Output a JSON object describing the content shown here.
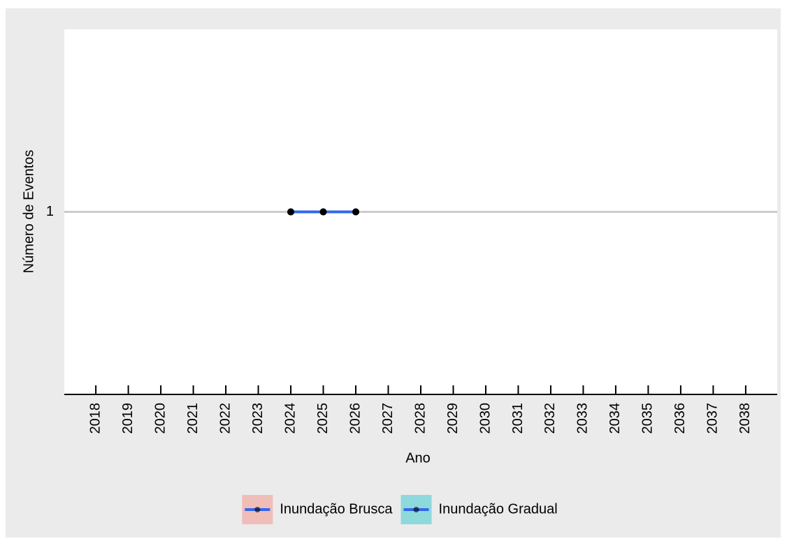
{
  "chart_data": {
    "type": "line",
    "x_label": "Ano",
    "y_label": "Número de Eventos",
    "x": [
      2024,
      2025,
      2026
    ],
    "series": [
      {
        "name": "Inundação Brusca",
        "color": "#f1bdb9",
        "values": [
          1,
          1,
          1
        ]
      },
      {
        "name": "Inundação Gradual",
        "color": "#8ed9db",
        "values": [
          1,
          1,
          1
        ]
      }
    ],
    "line_color": "#3366ee",
    "point_color": "#000000",
    "xlim": [
      2017.03,
      2038.97
    ],
    "xticks": [
      2018,
      2019,
      2020,
      2021,
      2022,
      2023,
      2024,
      2025,
      2026,
      2027,
      2028,
      2029,
      2030,
      2031,
      2032,
      2033,
      2034,
      2035,
      2036,
      2037,
      2038
    ],
    "ylim": [
      0.95,
      1.05
    ],
    "yticks": [
      1
    ],
    "grid": true,
    "legend": "bottom"
  }
}
